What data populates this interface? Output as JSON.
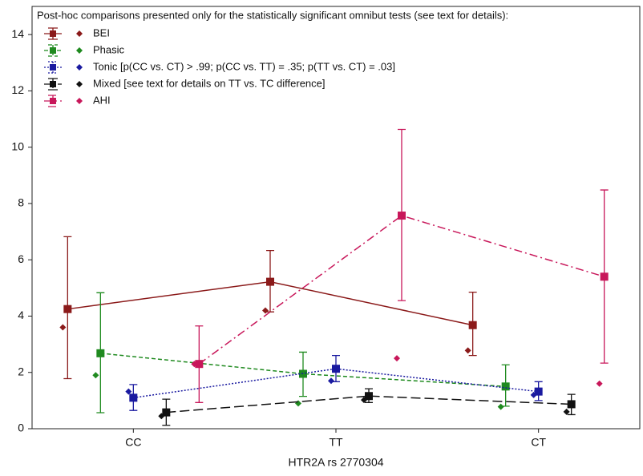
{
  "chart_data": {
    "type": "line",
    "legend_title": "Post-hoc comparisons presented only for the statistically significant omnibut tests (see text for details):",
    "x_label": "HTR2A rs 2770304",
    "categories": [
      "CC",
      "TT",
      "CT"
    ],
    "ylim": [
      0,
      15
    ],
    "yticks": [
      0,
      2,
      4,
      6,
      8,
      10,
      12,
      14
    ],
    "series": [
      {
        "name": "BEI",
        "color": "#8b1a1a",
        "line_style": "solid",
        "values": [
          4.25,
          5.22,
          3.68
        ],
        "lower": [
          1.78,
          4.15,
          2.6
        ],
        "upper": [
          6.82,
          6.33,
          4.85
        ],
        "medians": [
          3.6,
          4.2,
          2.78
        ]
      },
      {
        "name": "Phasic",
        "color": "#1f8a1f",
        "line_style": "dashed",
        "values": [
          2.68,
          1.95,
          1.5
        ],
        "lower": [
          0.57,
          1.15,
          0.8
        ],
        "upper": [
          4.83,
          2.72,
          2.27
        ],
        "medians": [
          1.9,
          0.9,
          0.78
        ]
      },
      {
        "name": "Tonic [p(CC vs. CT) > .99; p(CC vs. TT) = .35; p(TT vs. CT) = .03]",
        "color": "#1a1aa0",
        "line_style": "dotted",
        "values": [
          1.1,
          2.13,
          1.32
        ],
        "lower": [
          0.65,
          1.67,
          1.0
        ],
        "upper": [
          1.57,
          2.6,
          1.67
        ],
        "medians": [
          1.32,
          1.7,
          1.2
        ]
      },
      {
        "name": "Mixed [see text for details on TT vs. TC difference]",
        "color": "#111111",
        "line_style": "longdash",
        "values": [
          0.58,
          1.16,
          0.87
        ],
        "lower": [
          0.12,
          0.93,
          0.5
        ],
        "upper": [
          1.05,
          1.42,
          1.22
        ],
        "medians": [
          0.45,
          1.02,
          0.6
        ]
      },
      {
        "name": "AHI",
        "color": "#c8175a",
        "line_style": "dashdot",
        "values": [
          2.3,
          7.57,
          5.4
        ],
        "lower": [
          0.93,
          4.55,
          2.33
        ],
        "upper": [
          3.65,
          10.63,
          8.48
        ],
        "medians": [
          2.3,
          2.5,
          1.6
        ]
      }
    ]
  }
}
